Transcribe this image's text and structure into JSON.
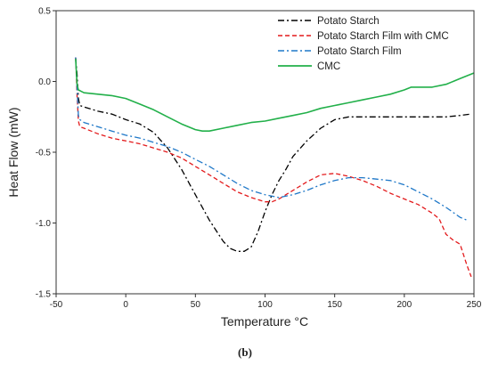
{
  "caption": "(b)",
  "chart_data": {
    "type": "line",
    "title": "",
    "xlabel": "Temperature °C",
    "ylabel": "Heat Flow (mW)",
    "xlim": [
      -50,
      250
    ],
    "ylim": [
      -1.5,
      0.5
    ],
    "xticks": [
      -50,
      0,
      50,
      100,
      150,
      200,
      250
    ],
    "xtick_labels": [
      "-50",
      "0",
      "50",
      "100",
      "150",
      "200",
      "250"
    ],
    "yticks": [
      0.5,
      0.0,
      -0.5,
      -1.0,
      -1.5
    ],
    "ytick_labels": [
      "0.5",
      "0.0",
      "-0.5",
      "-1.0",
      "-1.5"
    ],
    "grid": false,
    "legend_position": "top-right",
    "series": [
      {
        "name": "Potato Starch",
        "color": "#000000",
        "style": "dashdot",
        "x": [
          -36,
          -35,
          -34,
          -33,
          -30,
          -20,
          -10,
          0,
          10,
          20,
          30,
          40,
          50,
          60,
          70,
          75,
          80,
          85,
          90,
          95,
          100,
          105,
          110,
          115,
          120,
          130,
          140,
          150,
          160,
          170,
          180,
          190,
          200,
          210,
          220,
          230,
          240,
          248
        ],
        "y": [
          0.17,
          0.05,
          -0.12,
          -0.17,
          -0.18,
          -0.21,
          -0.23,
          -0.27,
          -0.3,
          -0.36,
          -0.47,
          -0.62,
          -0.8,
          -0.98,
          -1.13,
          -1.18,
          -1.2,
          -1.2,
          -1.17,
          -1.06,
          -0.92,
          -0.8,
          -0.7,
          -0.62,
          -0.53,
          -0.42,
          -0.33,
          -0.27,
          -0.25,
          -0.25,
          -0.25,
          -0.25,
          -0.25,
          -0.25,
          -0.25,
          -0.25,
          -0.24,
          -0.23
        ]
      },
      {
        "name": "Potato Starch Film with CMC",
        "color": "#e31a1c",
        "style": "dashed",
        "x": [
          -36,
          -35,
          -34,
          -33,
          -30,
          -20,
          -10,
          0,
          10,
          20,
          30,
          40,
          50,
          60,
          70,
          80,
          90,
          100,
          105,
          110,
          120,
          130,
          140,
          150,
          160,
          170,
          180,
          190,
          200,
          210,
          220,
          225,
          230,
          235,
          240,
          245,
          248
        ],
        "y": [
          0.17,
          -0.1,
          -0.28,
          -0.32,
          -0.33,
          -0.37,
          -0.4,
          -0.42,
          -0.44,
          -0.47,
          -0.5,
          -0.54,
          -0.6,
          -0.66,
          -0.72,
          -0.78,
          -0.82,
          -0.85,
          -0.85,
          -0.83,
          -0.77,
          -0.71,
          -0.66,
          -0.65,
          -0.67,
          -0.7,
          -0.74,
          -0.79,
          -0.83,
          -0.87,
          -0.93,
          -0.97,
          -1.08,
          -1.12,
          -1.15,
          -1.3,
          -1.38
        ]
      },
      {
        "name": "Potato Starch Film",
        "color": "#1f78c8",
        "style": "dashdot",
        "x": [
          -36,
          -35,
          -34,
          -33,
          -30,
          -20,
          -10,
          0,
          10,
          20,
          30,
          40,
          50,
          60,
          70,
          80,
          90,
          100,
          110,
          120,
          130,
          140,
          150,
          160,
          170,
          180,
          190,
          200,
          210,
          220,
          230,
          240,
          245
        ],
        "y": [
          0.17,
          -0.05,
          -0.24,
          -0.27,
          -0.29,
          -0.32,
          -0.35,
          -0.38,
          -0.4,
          -0.43,
          -0.46,
          -0.5,
          -0.55,
          -0.6,
          -0.66,
          -0.72,
          -0.77,
          -0.8,
          -0.82,
          -0.8,
          -0.77,
          -0.73,
          -0.7,
          -0.68,
          -0.68,
          -0.69,
          -0.7,
          -0.73,
          -0.78,
          -0.83,
          -0.89,
          -0.96,
          -0.98
        ]
      },
      {
        "name": "CMC",
        "color": "#22b04a",
        "style": "solid",
        "x": [
          -36,
          -35,
          -34,
          -32,
          -30,
          -20,
          -10,
          0,
          10,
          20,
          30,
          40,
          50,
          55,
          60,
          70,
          80,
          90,
          100,
          110,
          120,
          130,
          140,
          150,
          160,
          170,
          180,
          190,
          200,
          205,
          210,
          220,
          230,
          240,
          250
        ],
        "y": [
          0.16,
          -0.02,
          -0.06,
          -0.07,
          -0.08,
          -0.09,
          -0.1,
          -0.12,
          -0.16,
          -0.2,
          -0.25,
          -0.3,
          -0.34,
          -0.35,
          -0.35,
          -0.33,
          -0.31,
          -0.29,
          -0.28,
          -0.26,
          -0.24,
          -0.22,
          -0.19,
          -0.17,
          -0.15,
          -0.13,
          -0.11,
          -0.09,
          -0.06,
          -0.04,
          -0.04,
          -0.04,
          -0.02,
          0.02,
          0.06
        ]
      }
    ]
  }
}
